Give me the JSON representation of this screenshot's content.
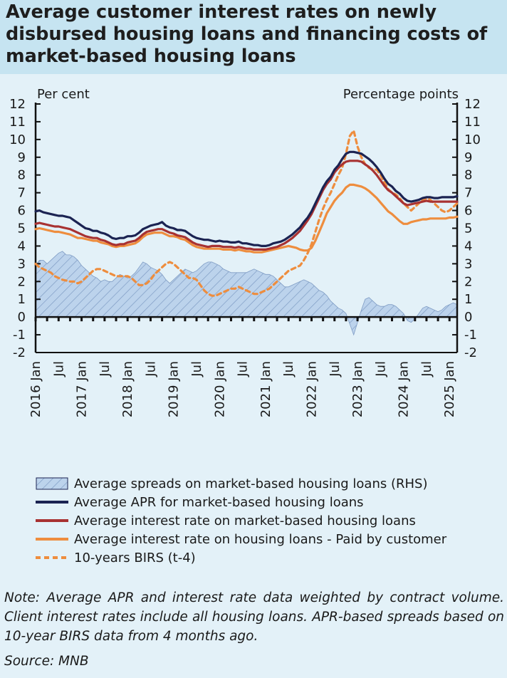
{
  "title": "Average customer interest rates on newly disbursed housing loans and financing costs of market-based housing loans",
  "note": "Note: Average APR and interest rate data weighted by contract volume. Client interest rates include all housing loans. APR-based spreads based on 10-year BIRS data from 4 months ago.",
  "source": "Source: MNB",
  "colors": {
    "background": "#e3f1f8",
    "header": "#c6e4f1",
    "apr": "#1b2352",
    "rate": "#a83232",
    "paid": "#ee8d3e",
    "birs": "#ee8d3e",
    "spread_fill": "#bcd3ec",
    "spread_hatch": "#7f9cc4"
  },
  "chart_data": {
    "type": "line",
    "ylabel_left": "Per cent",
    "ylabel_right": "Percentage points",
    "ylim": [
      -2,
      12
    ],
    "yticks": [
      "-2",
      "-1",
      "0",
      "1",
      "2",
      "3",
      "4",
      "5",
      "6",
      "7",
      "8",
      "9",
      "10",
      "11",
      "12"
    ],
    "xticks": [
      "2016 Jan",
      "Jul",
      "2017 Jan",
      "Jul",
      "2018 Jan",
      "Jul",
      "2019 Jan",
      "Jul",
      "2020 Jan",
      "Jul",
      "2021 Jan",
      "Jul",
      "2022 Jan",
      "Jul",
      "2023 Jan",
      "Jul",
      "2024 Jan",
      "Jul",
      "2025 Jan"
    ],
    "x_start": "2016 Jan",
    "frequency": "monthly",
    "legend": [
      {
        "key": "spread",
        "label": "Average spreads on market-based housing loans (RHS)",
        "style": "hatched-area"
      },
      {
        "key": "apr",
        "label": "Average APR for market-based housing loans",
        "style": "line"
      },
      {
        "key": "rate",
        "label": "Average interest rate on market-based housing loans",
        "style": "line"
      },
      {
        "key": "paid",
        "label": "Average interest rate on housing loans - Paid by customer",
        "style": "line"
      },
      {
        "key": "birs",
        "label": "10-years BIRS (t-4)",
        "style": "dashed"
      }
    ],
    "series": [
      {
        "name": "Average APR for market-based housing loans",
        "key": "apr",
        "axis": "left",
        "values": [
          5.95,
          6.0,
          5.9,
          5.85,
          5.8,
          5.75,
          5.7,
          5.7,
          5.65,
          5.6,
          5.45,
          5.3,
          5.15,
          5.0,
          4.95,
          4.85,
          4.85,
          4.75,
          4.7,
          4.6,
          4.45,
          4.4,
          4.45,
          4.45,
          4.55,
          4.55,
          4.6,
          4.75,
          4.95,
          5.05,
          5.15,
          5.2,
          5.25,
          5.35,
          5.15,
          5.05,
          5.0,
          4.9,
          4.9,
          4.85,
          4.7,
          4.55,
          4.45,
          4.4,
          4.35,
          4.35,
          4.3,
          4.25,
          4.3,
          4.25,
          4.25,
          4.2,
          4.2,
          4.25,
          4.15,
          4.15,
          4.1,
          4.05,
          4.05,
          4.0,
          4.0,
          4.05,
          4.15,
          4.2,
          4.25,
          4.35,
          4.5,
          4.65,
          4.85,
          5.05,
          5.35,
          5.6,
          5.95,
          6.4,
          6.85,
          7.3,
          7.65,
          7.9,
          8.3,
          8.55,
          8.9,
          9.2,
          9.3,
          9.3,
          9.25,
          9.2,
          9.05,
          8.9,
          8.7,
          8.45,
          8.15,
          7.8,
          7.5,
          7.35,
          7.1,
          6.95,
          6.7,
          6.55,
          6.5,
          6.55,
          6.6,
          6.7,
          6.75,
          6.75,
          6.7,
          6.7,
          6.75,
          6.75,
          6.75,
          6.75,
          6.8
        ]
      },
      {
        "name": "Average interest rate on market-based housing loans",
        "key": "rate",
        "axis": "left",
        "values": [
          5.25,
          5.3,
          5.25,
          5.2,
          5.15,
          5.1,
          5.1,
          5.05,
          5.0,
          4.95,
          4.85,
          4.75,
          4.65,
          4.55,
          4.5,
          4.45,
          4.45,
          4.35,
          4.3,
          4.2,
          4.1,
          4.05,
          4.1,
          4.1,
          4.2,
          4.25,
          4.3,
          4.45,
          4.65,
          4.8,
          4.85,
          4.9,
          4.95,
          4.95,
          4.85,
          4.75,
          4.7,
          4.6,
          4.55,
          4.5,
          4.35,
          4.2,
          4.1,
          4.05,
          4.0,
          3.95,
          4.0,
          4.0,
          4.0,
          3.95,
          3.95,
          3.95,
          3.9,
          3.95,
          3.9,
          3.85,
          3.85,
          3.8,
          3.8,
          3.8,
          3.8,
          3.85,
          3.9,
          3.95,
          4.05,
          4.15,
          4.3,
          4.45,
          4.65,
          4.85,
          5.15,
          5.45,
          5.8,
          6.25,
          6.7,
          7.15,
          7.5,
          7.75,
          8.15,
          8.4,
          8.6,
          8.75,
          8.8,
          8.8,
          8.8,
          8.75,
          8.6,
          8.45,
          8.25,
          8.0,
          7.7,
          7.4,
          7.15,
          7.0,
          6.8,
          6.6,
          6.4,
          6.3,
          6.35,
          6.4,
          6.45,
          6.5,
          6.55,
          6.5,
          6.5,
          6.5,
          6.5,
          6.5,
          6.5,
          6.5,
          6.5
        ]
      },
      {
        "name": "Average interest rate on housing loans - Paid by customer",
        "key": "paid",
        "axis": "left",
        "values": [
          4.95,
          5.0,
          4.95,
          4.9,
          4.85,
          4.8,
          4.8,
          4.75,
          4.7,
          4.65,
          4.55,
          4.45,
          4.45,
          4.4,
          4.35,
          4.3,
          4.3,
          4.2,
          4.15,
          4.1,
          4.0,
          3.95,
          4.0,
          4.0,
          4.05,
          4.1,
          4.15,
          4.3,
          4.5,
          4.65,
          4.7,
          4.75,
          4.75,
          4.75,
          4.65,
          4.55,
          4.55,
          4.5,
          4.4,
          4.35,
          4.2,
          4.05,
          3.95,
          3.9,
          3.85,
          3.85,
          3.85,
          3.85,
          3.85,
          3.8,
          3.8,
          3.8,
          3.75,
          3.8,
          3.75,
          3.7,
          3.7,
          3.65,
          3.65,
          3.65,
          3.7,
          3.75,
          3.8,
          3.85,
          3.9,
          3.95,
          4.0,
          3.95,
          3.9,
          3.8,
          3.75,
          3.75,
          3.9,
          4.3,
          4.8,
          5.3,
          5.85,
          6.2,
          6.55,
          6.8,
          7.0,
          7.3,
          7.45,
          7.45,
          7.4,
          7.35,
          7.25,
          7.1,
          6.9,
          6.7,
          6.45,
          6.2,
          5.95,
          5.8,
          5.6,
          5.4,
          5.25,
          5.25,
          5.35,
          5.4,
          5.45,
          5.5,
          5.5,
          5.55,
          5.55,
          5.55,
          5.55,
          5.55,
          5.6,
          5.6,
          5.65
        ]
      },
      {
        "name": "10-years BIRS (t-4)",
        "key": "birs",
        "axis": "left",
        "values": [
          3.0,
          2.8,
          2.7,
          2.6,
          2.5,
          2.3,
          2.2,
          2.1,
          2.05,
          2.0,
          2.0,
          1.9,
          2.0,
          2.2,
          2.4,
          2.6,
          2.7,
          2.7,
          2.6,
          2.5,
          2.4,
          2.3,
          2.3,
          2.3,
          2.3,
          2.2,
          2.0,
          1.8,
          1.8,
          1.9,
          2.1,
          2.4,
          2.6,
          2.8,
          3.0,
          3.1,
          3.0,
          2.8,
          2.6,
          2.4,
          2.2,
          2.2,
          2.1,
          1.8,
          1.5,
          1.3,
          1.2,
          1.2,
          1.3,
          1.4,
          1.5,
          1.6,
          1.6,
          1.7,
          1.6,
          1.5,
          1.4,
          1.3,
          1.3,
          1.4,
          1.5,
          1.6,
          1.8,
          2.0,
          2.2,
          2.4,
          2.6,
          2.7,
          2.8,
          2.9,
          3.2,
          3.6,
          4.1,
          4.8,
          5.5,
          6.1,
          6.6,
          7.0,
          7.5,
          8.0,
          8.4,
          9.2,
          10.2,
          10.5,
          9.6,
          9.0,
          8.6,
          8.4,
          8.3,
          8.3,
          8.0,
          7.6,
          7.2,
          7.0,
          6.9,
          6.7,
          6.4,
          6.2,
          6.0,
          6.2,
          6.4,
          6.6,
          6.7,
          6.6,
          6.4,
          6.2,
          6.0,
          5.9,
          6.0,
          6.2,
          6.4
        ]
      },
      {
        "name": "Average spreads on market-based housing loans (RHS)",
        "key": "spread",
        "axis": "right",
        "values": [
          2.9,
          3.2,
          3.2,
          3.0,
          3.2,
          3.4,
          3.6,
          3.7,
          3.5,
          3.5,
          3.4,
          3.2,
          2.9,
          2.7,
          2.5,
          2.3,
          2.2,
          2.0,
          2.1,
          2.0,
          2.0,
          2.2,
          2.4,
          2.3,
          2.2,
          2.3,
          2.5,
          2.8,
          3.1,
          3.0,
          2.8,
          2.7,
          2.6,
          2.4,
          2.1,
          1.9,
          2.1,
          2.3,
          2.5,
          2.7,
          2.6,
          2.5,
          2.6,
          2.8,
          3.0,
          3.1,
          3.1,
          3.0,
          2.9,
          2.7,
          2.6,
          2.5,
          2.5,
          2.5,
          2.5,
          2.5,
          2.6,
          2.7,
          2.6,
          2.5,
          2.4,
          2.4,
          2.3,
          2.1,
          1.9,
          1.7,
          1.7,
          1.8,
          1.9,
          2.0,
          2.1,
          2.0,
          1.9,
          1.7,
          1.5,
          1.4,
          1.2,
          0.9,
          0.7,
          0.5,
          0.4,
          0.2,
          -0.4,
          -1.0,
          -0.3,
          0.4,
          1.0,
          1.1,
          0.9,
          0.7,
          0.6,
          0.6,
          0.7,
          0.7,
          0.6,
          0.4,
          0.2,
          -0.2,
          -0.3,
          -0.1,
          0.2,
          0.5,
          0.6,
          0.5,
          0.4,
          0.3,
          0.4,
          0.6,
          0.7,
          0.8,
          0.7
        ]
      }
    ]
  }
}
